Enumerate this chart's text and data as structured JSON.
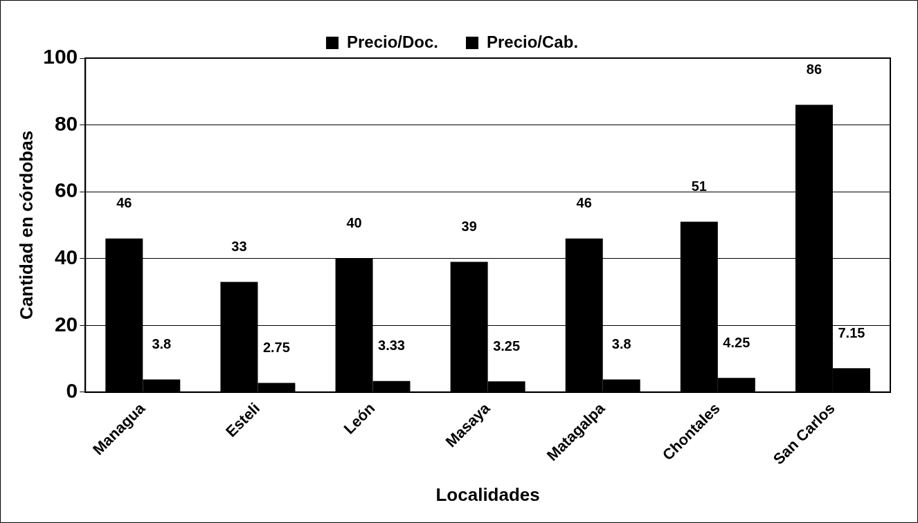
{
  "chart_data": {
    "type": "bar",
    "xlabel": "Localidades",
    "ylabel": "Cantidad en córdobas",
    "categories": [
      "Managua",
      "Esteli",
      "León",
      "Masaya",
      "Matagalpa",
      "Chontales",
      "San Carlos"
    ],
    "series": [
      {
        "name": "Precio/Doc.",
        "color": "#000000",
        "values": [
          46,
          33,
          40,
          39,
          46,
          51,
          86
        ]
      },
      {
        "name": "Precio/Cab.",
        "color": "#000000",
        "values": [
          3.8,
          2.75,
          3.33,
          3.25,
          3.8,
          4.25,
          7.15
        ]
      }
    ],
    "ylim": [
      0,
      100
    ],
    "yticks": [
      0,
      20,
      40,
      60,
      80,
      100
    ],
    "grid": "y",
    "legend": "top",
    "data_labels": true
  }
}
